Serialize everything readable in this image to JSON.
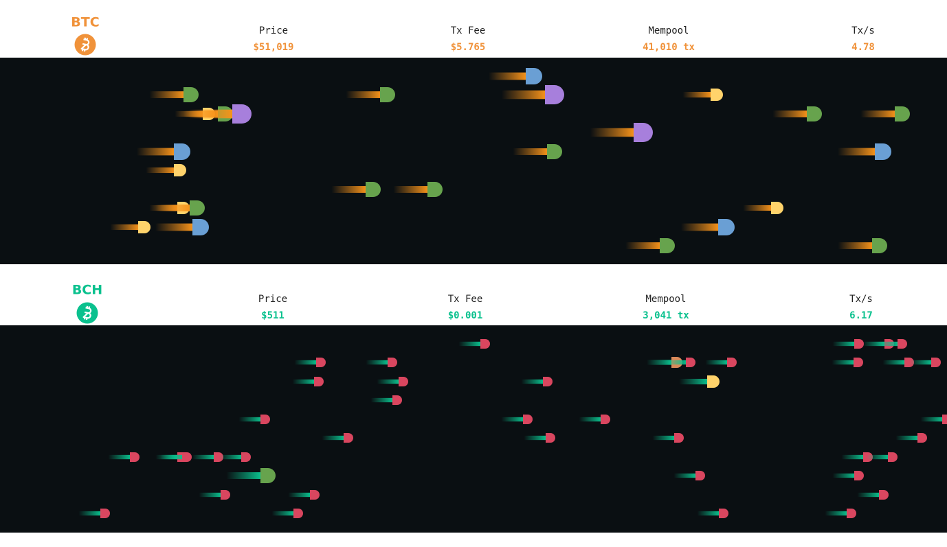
{
  "panels": [
    {
      "coin": "BTC",
      "stats": [
        {
          "label": "Price",
          "value": "$51,019"
        },
        {
          "label": "Tx Fee",
          "value": "$5.765"
        },
        {
          "label": "Mempool",
          "value": "41,010 tx"
        },
        {
          "label": "Tx/s",
          "value": "4.78"
        }
      ]
    },
    {
      "coin": "BCH",
      "stats": [
        {
          "label": "Price",
          "value": "$511"
        },
        {
          "label": "Tx Fee",
          "value": "$0.001"
        },
        {
          "label": "Mempool",
          "value": "3,041 tx"
        },
        {
          "label": "Tx/s",
          "value": "6.17"
        }
      ]
    }
  ]
}
